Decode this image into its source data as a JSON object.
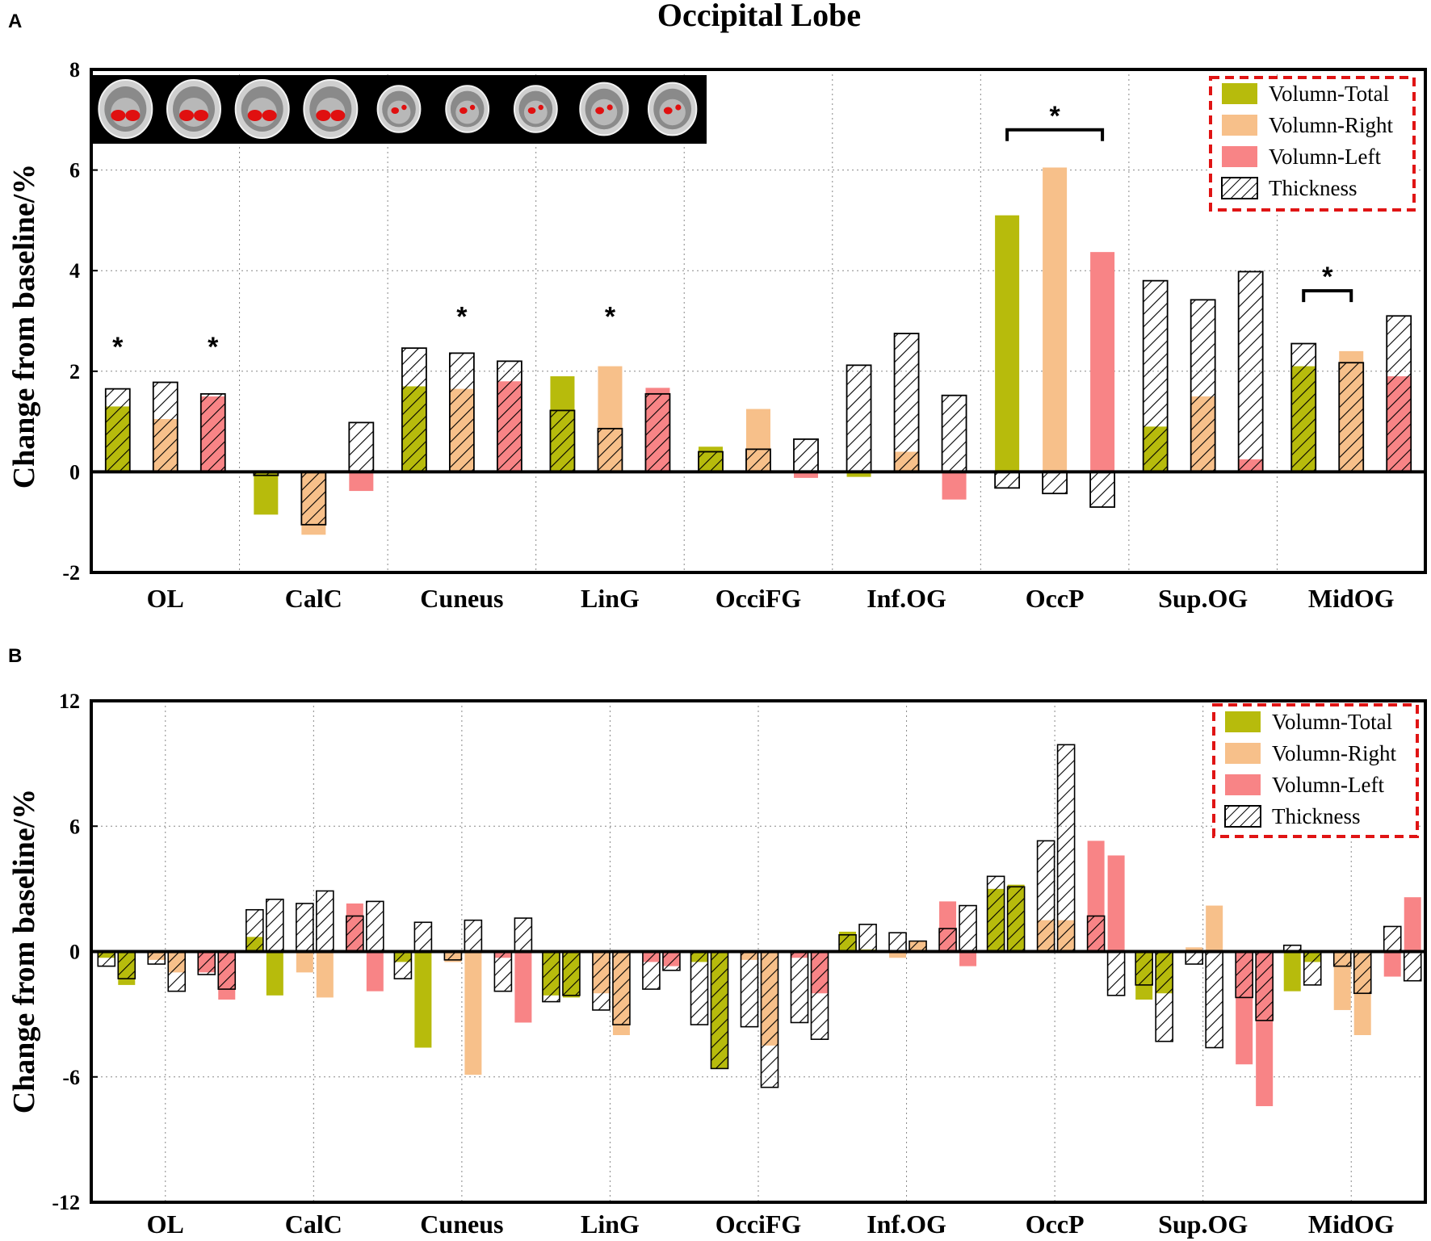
{
  "figure_title": "Occipital Lobe",
  "colors": {
    "volumn_total": "#b7bb0c",
    "volumn_right": "#f7c08a",
    "volumn_left": "#f88486",
    "thickness_fill": "#ffffff",
    "legend_border": "#e01414"
  },
  "legend": [
    {
      "key": "volumn_total",
      "label": "Volumn-Total"
    },
    {
      "key": "volumn_right",
      "label": "Volumn-Right"
    },
    {
      "key": "volumn_left",
      "label": "Volumn-Left"
    },
    {
      "key": "thickness",
      "label": "Thickness"
    }
  ],
  "brain_inset": {
    "description_icon": "brain-mri-thumbnails-icon",
    "count": 9
  },
  "chart_data": [
    {
      "panel": "A",
      "type": "bar",
      "title": "Occipital Lobe",
      "ylabel": "Change from baseline/%",
      "xlabel": "",
      "ylim": [
        -2,
        8
      ],
      "yticks": [
        -2,
        0,
        2,
        4,
        6,
        8
      ],
      "grid": true,
      "legend_position": "top-right",
      "categories": [
        "OL",
        "CalC",
        "Cuneus",
        "LinG",
        "OcciFG",
        "Inf.OG",
        "OccP",
        "Sup.OG",
        "MidOG"
      ],
      "series": [
        {
          "name": "Volumn-Total",
          "values": [
            1.3,
            -0.85,
            1.7,
            1.9,
            0.5,
            -0.1,
            5.1,
            0.9,
            2.1
          ]
        },
        {
          "name": "Volumn-Right",
          "values": [
            1.05,
            -1.25,
            1.65,
            2.1,
            1.25,
            0.4,
            6.05,
            1.5,
            2.4
          ]
        },
        {
          "name": "Volumn-Left",
          "values": [
            1.5,
            -0.38,
            1.8,
            1.67,
            -0.12,
            -0.55,
            4.37,
            0.25,
            1.9
          ]
        },
        {
          "name": "Thickness",
          "values": [
            [
              1.65,
              1.78,
              1.55
            ],
            [
              -0.07,
              -1.05,
              0.98
            ],
            [
              2.46,
              2.36,
              2.2
            ],
            [
              1.22,
              0.86,
              1.55
            ],
            [
              0.4,
              0.45,
              0.65
            ],
            [
              2.12,
              2.75,
              1.52
            ],
            [
              -0.32,
              -0.43,
              -0.7
            ],
            [
              3.8,
              3.42,
              3.98
            ],
            [
              2.55,
              2.17,
              3.1
            ]
          ]
        }
      ],
      "annotations": [
        {
          "text": "*",
          "category": "OL",
          "bar": 0,
          "y": 2.3
        },
        {
          "text": "*",
          "category": "OL",
          "bar": 2,
          "y": 2.3
        },
        {
          "text": "*",
          "category": "Cuneus",
          "bar": 1,
          "y": 2.9
        },
        {
          "text": "*",
          "category": "LinG",
          "bar": 1,
          "y": 2.9
        },
        {
          "text": "*",
          "category": "OccP",
          "bracket": [
            0,
            2
          ],
          "y": 6.8
        },
        {
          "text": "*",
          "category": "MidOG",
          "bracket": [
            0,
            1
          ],
          "y": 3.6
        }
      ]
    },
    {
      "panel": "B",
      "type": "bar",
      "title": "",
      "ylabel": "Change from baseline/%",
      "xlabel": "",
      "ylim": [
        -12,
        12
      ],
      "yticks": [
        -12,
        -6,
        0,
        6,
        12
      ],
      "grid": true,
      "legend_position": "top-right",
      "categories": [
        "OL",
        "CalC",
        "Cuneus",
        "LinG",
        "OcciFG",
        "Inf.OG",
        "OccP",
        "Sup.OG",
        "MidOG"
      ],
      "series": [
        {
          "name": "Volumn-Total",
          "values": [
            [
              -0.3,
              -1.6
            ],
            [
              0.7,
              -2.1
            ],
            [
              -0.5,
              -4.6
            ],
            [
              -2.1,
              -2.2
            ],
            [
              -0.5,
              -5.6
            ],
            [
              0.95,
              0.1
            ],
            [
              3.0,
              3.2
            ],
            [
              -2.3,
              -2.0
            ],
            [
              -1.9,
              -0.5
            ]
          ]
        },
        {
          "name": "Volumn-Right",
          "values": [
            [
              -0.4,
              -1.0
            ],
            [
              -1.0,
              -2.2
            ],
            [
              -0.5,
              -5.9
            ],
            [
              -2.0,
              -4.0
            ],
            [
              -0.4,
              -4.5
            ],
            [
              -0.3,
              0.5
            ],
            [
              1.5,
              1.5
            ],
            [
              0.2,
              2.2
            ],
            [
              -2.8,
              -4.0
            ]
          ]
        },
        {
          "name": "Volumn-Left",
          "values": [
            [
              -1.0,
              -2.3
            ],
            [
              2.3,
              -1.9
            ],
            [
              -0.3,
              -3.4
            ],
            [
              -0.5,
              -0.7
            ],
            [
              -0.3,
              -2.0
            ],
            [
              2.4,
              -0.7
            ],
            [
              5.3,
              4.6
            ],
            [
              -5.4,
              -7.4
            ],
            [
              -1.2,
              2.6
            ]
          ]
        },
        {
          "name": "Thickness",
          "values": [
            [
              -0.7,
              -1.3,
              -0.6,
              -1.9,
              -1.1,
              -1.8
            ],
            [
              2.0,
              2.5,
              2.3,
              2.9,
              1.7,
              2.4
            ],
            [
              -1.3,
              1.4,
              -0.4,
              1.5,
              -1.9,
              1.6
            ],
            [
              -2.4,
              -2.1,
              -2.8,
              -3.5,
              -1.8,
              -0.9
            ],
            [
              -3.5,
              -5.6,
              -3.6,
              -6.5,
              -3.4,
              -4.2
            ],
            [
              0.8,
              1.3,
              0.9,
              0.5,
              1.1,
              2.2
            ],
            [
              3.6,
              3.1,
              5.3,
              9.9,
              1.7,
              -2.1
            ],
            [
              -1.6,
              -4.3,
              -0.6,
              -4.6,
              -2.2,
              -3.3
            ],
            [
              0.3,
              -1.6,
              -0.7,
              -2.0,
              1.2,
              -1.4
            ]
          ]
        }
      ]
    }
  ]
}
